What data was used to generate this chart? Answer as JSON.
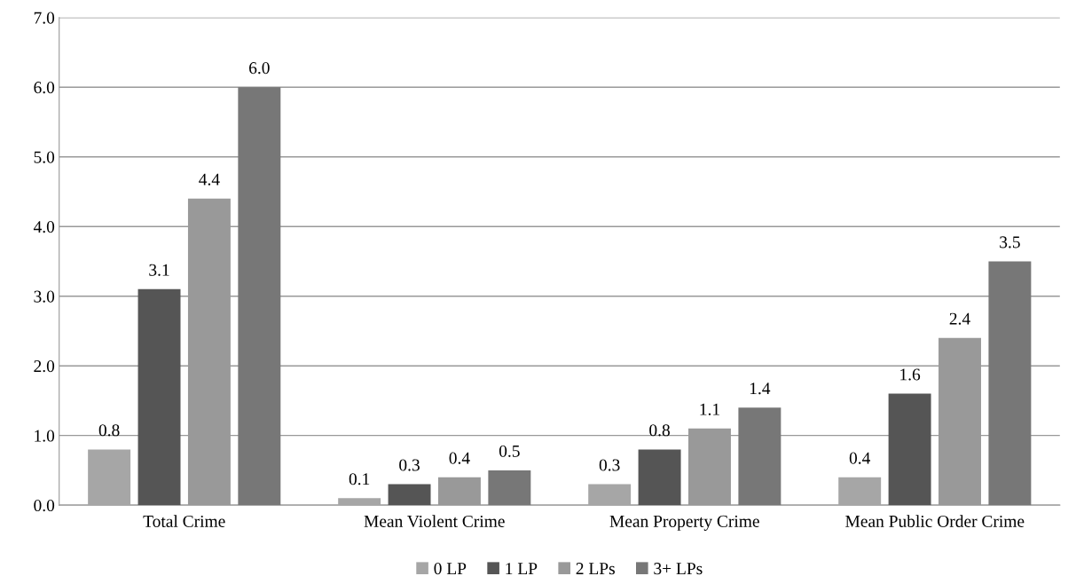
{
  "chart_data": {
    "type": "bar",
    "categories": [
      "Total Crime",
      "Mean Violent Crime",
      "Mean Property Crime",
      "Mean Public Order Crime"
    ],
    "series": [
      {
        "name": "0 LP",
        "color": "#a6a6a6",
        "values": [
          0.8,
          0.1,
          0.3,
          0.4
        ],
        "value_labels": [
          "0.8",
          "0.1",
          "0.3",
          "0.4"
        ]
      },
      {
        "name": "1 LP",
        "color": "#555555",
        "values": [
          3.1,
          0.3,
          0.8,
          1.6
        ],
        "value_labels": [
          "3.1",
          "0.3",
          "0.8",
          "1.6"
        ]
      },
      {
        "name": "2 LPs",
        "color": "#999999",
        "values": [
          4.4,
          0.4,
          1.1,
          2.4
        ],
        "value_labels": [
          "4.4",
          "0.4",
          "1.1",
          "2.4"
        ]
      },
      {
        "name": "3+ LPs",
        "color": "#777777",
        "values": [
          6.0,
          0.5,
          1.4,
          3.5
        ],
        "value_labels": [
          "6.0",
          "0.5",
          "1.4",
          "3.5"
        ]
      }
    ],
    "ylim": [
      0,
      7
    ],
    "yticks": [
      {
        "value": 0,
        "label": "0.0"
      },
      {
        "value": 1,
        "label": "1.0"
      },
      {
        "value": 2,
        "label": "2.0"
      },
      {
        "value": 3,
        "label": "3.0"
      },
      {
        "value": 4,
        "label": "4.0"
      },
      {
        "value": 5,
        "label": "5.0"
      },
      {
        "value": 6,
        "label": "6.0"
      },
      {
        "value": 7,
        "label": "7.0"
      }
    ],
    "grid": "y",
    "legend": "bottom"
  }
}
